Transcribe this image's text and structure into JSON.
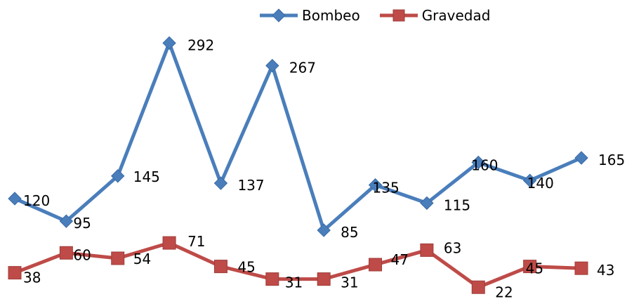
{
  "chart_data": {
    "type": "line",
    "title": "",
    "xlabel": "",
    "ylabel": "",
    "ylim": [
      0,
      300
    ],
    "grid": false,
    "legend_position": "top-right",
    "x": [
      1,
      2,
      3,
      4,
      5,
      6,
      7,
      8,
      9,
      10,
      11,
      12
    ],
    "series": [
      {
        "name": "Bombeo",
        "color": "#4a7ebb",
        "marker": "diamond",
        "values": [
          120,
          95,
          145,
          292,
          137,
          267,
          85,
          135,
          115,
          160,
          140,
          165
        ],
        "labels": [
          "120",
          "95",
          "145",
          "292",
          "137",
          "267",
          "85",
          "135",
          "115",
          "160",
          "140",
          "165"
        ]
      },
      {
        "name": "Gravedad",
        "color": "#be4b48",
        "marker": "square",
        "values": [
          38,
          60,
          54,
          71,
          45,
          31,
          31,
          47,
          63,
          22,
          45,
          43
        ],
        "labels": [
          "38",
          "60",
          "54",
          "71",
          "45",
          "31",
          "31",
          "47",
          "63",
          "22",
          "45",
          "43"
        ]
      }
    ]
  }
}
